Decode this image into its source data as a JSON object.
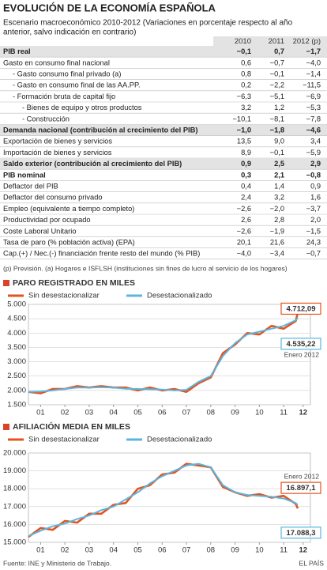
{
  "header": {
    "title": "EVOLUCIÓN DE LA ECONOMÍA ESPAÑOLA",
    "subtitle": [
      "Escenario macroeconómico 2010-2012 (Variaciones en porcentaje respecto al año",
      "anterior, salvo indicación en contrario)"
    ]
  },
  "table": {
    "columns": [
      "2010",
      "2011",
      "2012 (p)"
    ],
    "rows": [
      {
        "label": "PIB real",
        "values": [
          "−0,1",
          "0,7",
          "−1,7"
        ],
        "bold": true,
        "shaded": true,
        "indent": 0
      },
      {
        "label": "Gasto en consumo final nacional",
        "values": [
          "0,6",
          "−0,7",
          "−4,0"
        ],
        "bold": false,
        "shaded": false,
        "indent": 0
      },
      {
        "label": "- Gasto consumo final privado (a)",
        "values": [
          "0,8",
          "−0,1",
          "−1,4"
        ],
        "bold": false,
        "shaded": false,
        "indent": 1
      },
      {
        "label": "- Gasto en consumo final de las AA.PP.",
        "values": [
          "0,2",
          "−2,2",
          "−11,5"
        ],
        "bold": false,
        "shaded": false,
        "indent": 1
      },
      {
        "label": "- Formación bruta de capital fijo",
        "values": [
          "−6,3",
          "−5,1",
          "−6,9"
        ],
        "bold": false,
        "shaded": false,
        "indent": 1
      },
      {
        "label": "- Bienes de equipo y otros productos",
        "values": [
          "3,2",
          "1,2",
          "−5,3"
        ],
        "bold": false,
        "shaded": false,
        "indent": 2
      },
      {
        "label": "- Construcción",
        "values": [
          "−10,1",
          "−8,1",
          "−7,8"
        ],
        "bold": false,
        "shaded": false,
        "indent": 2
      },
      {
        "label": "Demanda nacional (contribución al crecimiento del PIB)",
        "values": [
          "−1,0",
          "−1,8",
          "−4,6"
        ],
        "bold": true,
        "shaded": true,
        "indent": 0
      },
      {
        "label": "Exportación de bienes y servicios",
        "values": [
          "13,5",
          "9,0",
          "3,4"
        ],
        "bold": false,
        "shaded": false,
        "indent": 0
      },
      {
        "label": "Importación de bienes y servicios",
        "values": [
          "8,9",
          "−0,1",
          "−5,9"
        ],
        "bold": false,
        "shaded": false,
        "indent": 0
      },
      {
        "label": "Saldo exterior (contribución al crecimiento del PIB)",
        "values": [
          "0,9",
          "2,5",
          "2,9"
        ],
        "bold": true,
        "shaded": true,
        "indent": 0
      },
      {
        "label": "PIB nominal",
        "values": [
          "0,3",
          "2,1",
          "−0,8"
        ],
        "bold": true,
        "shaded": false,
        "indent": 0
      },
      {
        "label": "Deflactor del PIB",
        "values": [
          "0,4",
          "1,4",
          "0,9"
        ],
        "bold": false,
        "shaded": false,
        "indent": 0
      },
      {
        "label": "Deflactor del consumo privado",
        "values": [
          "2,4",
          "3,2",
          "1,6"
        ],
        "bold": false,
        "shaded": false,
        "indent": 0
      },
      {
        "label": "Empleo (equivalente a tiempo completo)",
        "values": [
          "−2,6",
          "−2,0",
          "−3,7"
        ],
        "bold": false,
        "shaded": false,
        "indent": 0
      },
      {
        "label": "Productividad por ocupado",
        "values": [
          "2,6",
          "2,8",
          "2,0"
        ],
        "bold": false,
        "shaded": false,
        "indent": 0
      },
      {
        "label": "Coste Laboral Unitario",
        "values": [
          "−2,6",
          "−1,9",
          "−1,5"
        ],
        "bold": false,
        "shaded": false,
        "indent": 0
      },
      {
        "label": "Tasa de paro (% población activa) (EPA)",
        "values": [
          "20,1",
          "21,6",
          "24,3"
        ],
        "bold": false,
        "shaded": false,
        "indent": 0
      },
      {
        "label": "Cap.(+) / Nec.(-) financiación frente resto del mundo (% PIB)",
        "values": [
          "−4,0",
          "−3,4",
          "−0,7"
        ],
        "bold": false,
        "shaded": false,
        "indent": 0
      }
    ]
  },
  "footnote": "(p) Previsión. (a) Hogares e ISFLSH (instituciones sin fines de lucro al servicio de los hogares)",
  "chart_data": [
    {
      "type": "line",
      "title": "PARO REGISTRADO EN MILES",
      "annotation": "Enero 2012",
      "grid": true,
      "x": [
        1,
        1.5,
        2,
        2.5,
        3,
        3.5,
        4,
        4.5,
        5,
        5.5,
        6,
        6.5,
        7,
        7.5,
        8,
        8.5,
        9,
        9.5,
        10,
        10.5,
        11,
        11.5,
        12,
        12.08
      ],
      "xlim": [
        1,
        12.6
      ],
      "xticks": [
        {
          "value": 1.5,
          "label": "01"
        },
        {
          "value": 2.5,
          "label": "02"
        },
        {
          "value": 3.5,
          "label": "03"
        },
        {
          "value": 4.5,
          "label": "04"
        },
        {
          "value": 5.5,
          "label": "05"
        },
        {
          "value": 6.5,
          "label": "06"
        },
        {
          "value": 7.5,
          "label": "07"
        },
        {
          "value": 8.5,
          "label": "08"
        },
        {
          "value": 9.5,
          "label": "09"
        },
        {
          "value": 10.5,
          "label": "10"
        },
        {
          "value": 11.5,
          "label": "11"
        },
        {
          "value": 12.3,
          "label": "12"
        }
      ],
      "ylim": [
        1500,
        5000
      ],
      "yticks": [
        {
          "value": 1500,
          "label": "1.500"
        },
        {
          "value": 2000,
          "label": "2.000"
        },
        {
          "value": 2500,
          "label": "2.500"
        },
        {
          "value": 3000,
          "label": "3.000"
        },
        {
          "value": 3500,
          "label": "3.500"
        },
        {
          "value": 4000,
          "label": "4.000"
        },
        {
          "value": 4500,
          "label": "4.500"
        },
        {
          "value": 5000,
          "label": "5.000"
        }
      ],
      "series": [
        {
          "name": "Sin desestacionalizar",
          "color": "#e4531f",
          "values": [
            1950,
            1900,
            2050,
            2050,
            2150,
            2100,
            2150,
            2100,
            2100,
            2000,
            2100,
            2000,
            2050,
            1950,
            2250,
            2450,
            3300,
            3600,
            4000,
            3950,
            4250,
            4150,
            4420,
            4712.09
          ],
          "value_labels": [
            null,
            null,
            null,
            null,
            null,
            null,
            null,
            null,
            null,
            null,
            null,
            null,
            null,
            null,
            null,
            null,
            null,
            null,
            null,
            null,
            null,
            null,
            null,
            "4.712,09"
          ]
        },
        {
          "name": "Desestacionalizado",
          "color": "#5ab6e0",
          "values": [
            1950,
            1960,
            2000,
            2050,
            2100,
            2100,
            2110,
            2100,
            2060,
            2050,
            2040,
            2030,
            2000,
            2020,
            2300,
            2500,
            3200,
            3650,
            3950,
            4050,
            4150,
            4250,
            4450,
            4535.22
          ],
          "value_labels": [
            null,
            null,
            null,
            null,
            null,
            null,
            null,
            null,
            null,
            null,
            null,
            null,
            null,
            null,
            null,
            null,
            null,
            null,
            null,
            null,
            null,
            null,
            null,
            "4.535,22"
          ]
        }
      ]
    },
    {
      "type": "line",
      "title": "AFILIACIÓN MEDIA EN MILES",
      "annotation": "Enero 2012",
      "grid": true,
      "x": [
        1,
        1.5,
        2,
        2.5,
        3,
        3.5,
        4,
        4.5,
        5,
        5.5,
        6,
        6.5,
        7,
        7.5,
        8,
        8.5,
        9,
        9.5,
        10,
        10.5,
        11,
        11.5,
        12,
        12.08
      ],
      "xlim": [
        1,
        12.6
      ],
      "xticks": [
        {
          "value": 1.5,
          "label": "01"
        },
        {
          "value": 2.5,
          "label": "02"
        },
        {
          "value": 3.5,
          "label": "03"
        },
        {
          "value": 4.5,
          "label": "04"
        },
        {
          "value": 5.5,
          "label": "05"
        },
        {
          "value": 6.5,
          "label": "06"
        },
        {
          "value": 7.5,
          "label": "07"
        },
        {
          "value": 8.5,
          "label": "08"
        },
        {
          "value": 9.5,
          "label": "09"
        },
        {
          "value": 10.5,
          "label": "10"
        },
        {
          "value": 11.5,
          "label": "11"
        },
        {
          "value": 12.3,
          "label": "12"
        }
      ],
      "ylim": [
        15000,
        20000
      ],
      "yticks": [
        {
          "value": 15000,
          "label": "15.000"
        },
        {
          "value": 16000,
          "label": "16.000"
        },
        {
          "value": 17000,
          "label": "17.000"
        },
        {
          "value": 18000,
          "label": "18.000"
        },
        {
          "value": 19000,
          "label": "19.000"
        },
        {
          "value": 20000,
          "label": "20.000"
        }
      ],
      "series": [
        {
          "name": "Sin desestacionalizar",
          "color": "#e4531f",
          "values": [
            15300,
            15800,
            15700,
            16200,
            16100,
            16600,
            16600,
            17100,
            17200,
            18000,
            18200,
            18800,
            18900,
            19400,
            19300,
            19200,
            18100,
            17800,
            17600,
            17700,
            17500,
            17600,
            17150,
            16897.1
          ],
          "value_labels": [
            null,
            null,
            null,
            null,
            null,
            null,
            null,
            null,
            null,
            null,
            null,
            null,
            null,
            null,
            null,
            null,
            null,
            null,
            null,
            null,
            null,
            null,
            null,
            "16.897,1"
          ]
        },
        {
          "name": "Desestacionalizado",
          "color": "#5ab6e0",
          "values": [
            15350,
            15650,
            15900,
            16050,
            16300,
            16500,
            16800,
            17000,
            17400,
            17800,
            18300,
            18700,
            19000,
            19300,
            19400,
            19200,
            18200,
            17800,
            17650,
            17600,
            17550,
            17450,
            17200,
            17088.3
          ],
          "value_labels": [
            null,
            null,
            null,
            null,
            null,
            null,
            null,
            null,
            null,
            null,
            null,
            null,
            null,
            null,
            null,
            null,
            null,
            null,
            null,
            null,
            null,
            null,
            null,
            "17.088,3"
          ]
        }
      ]
    }
  ],
  "source": "Fuente: INE y Ministerio de Trabajo.",
  "brand": "EL PAÍS"
}
